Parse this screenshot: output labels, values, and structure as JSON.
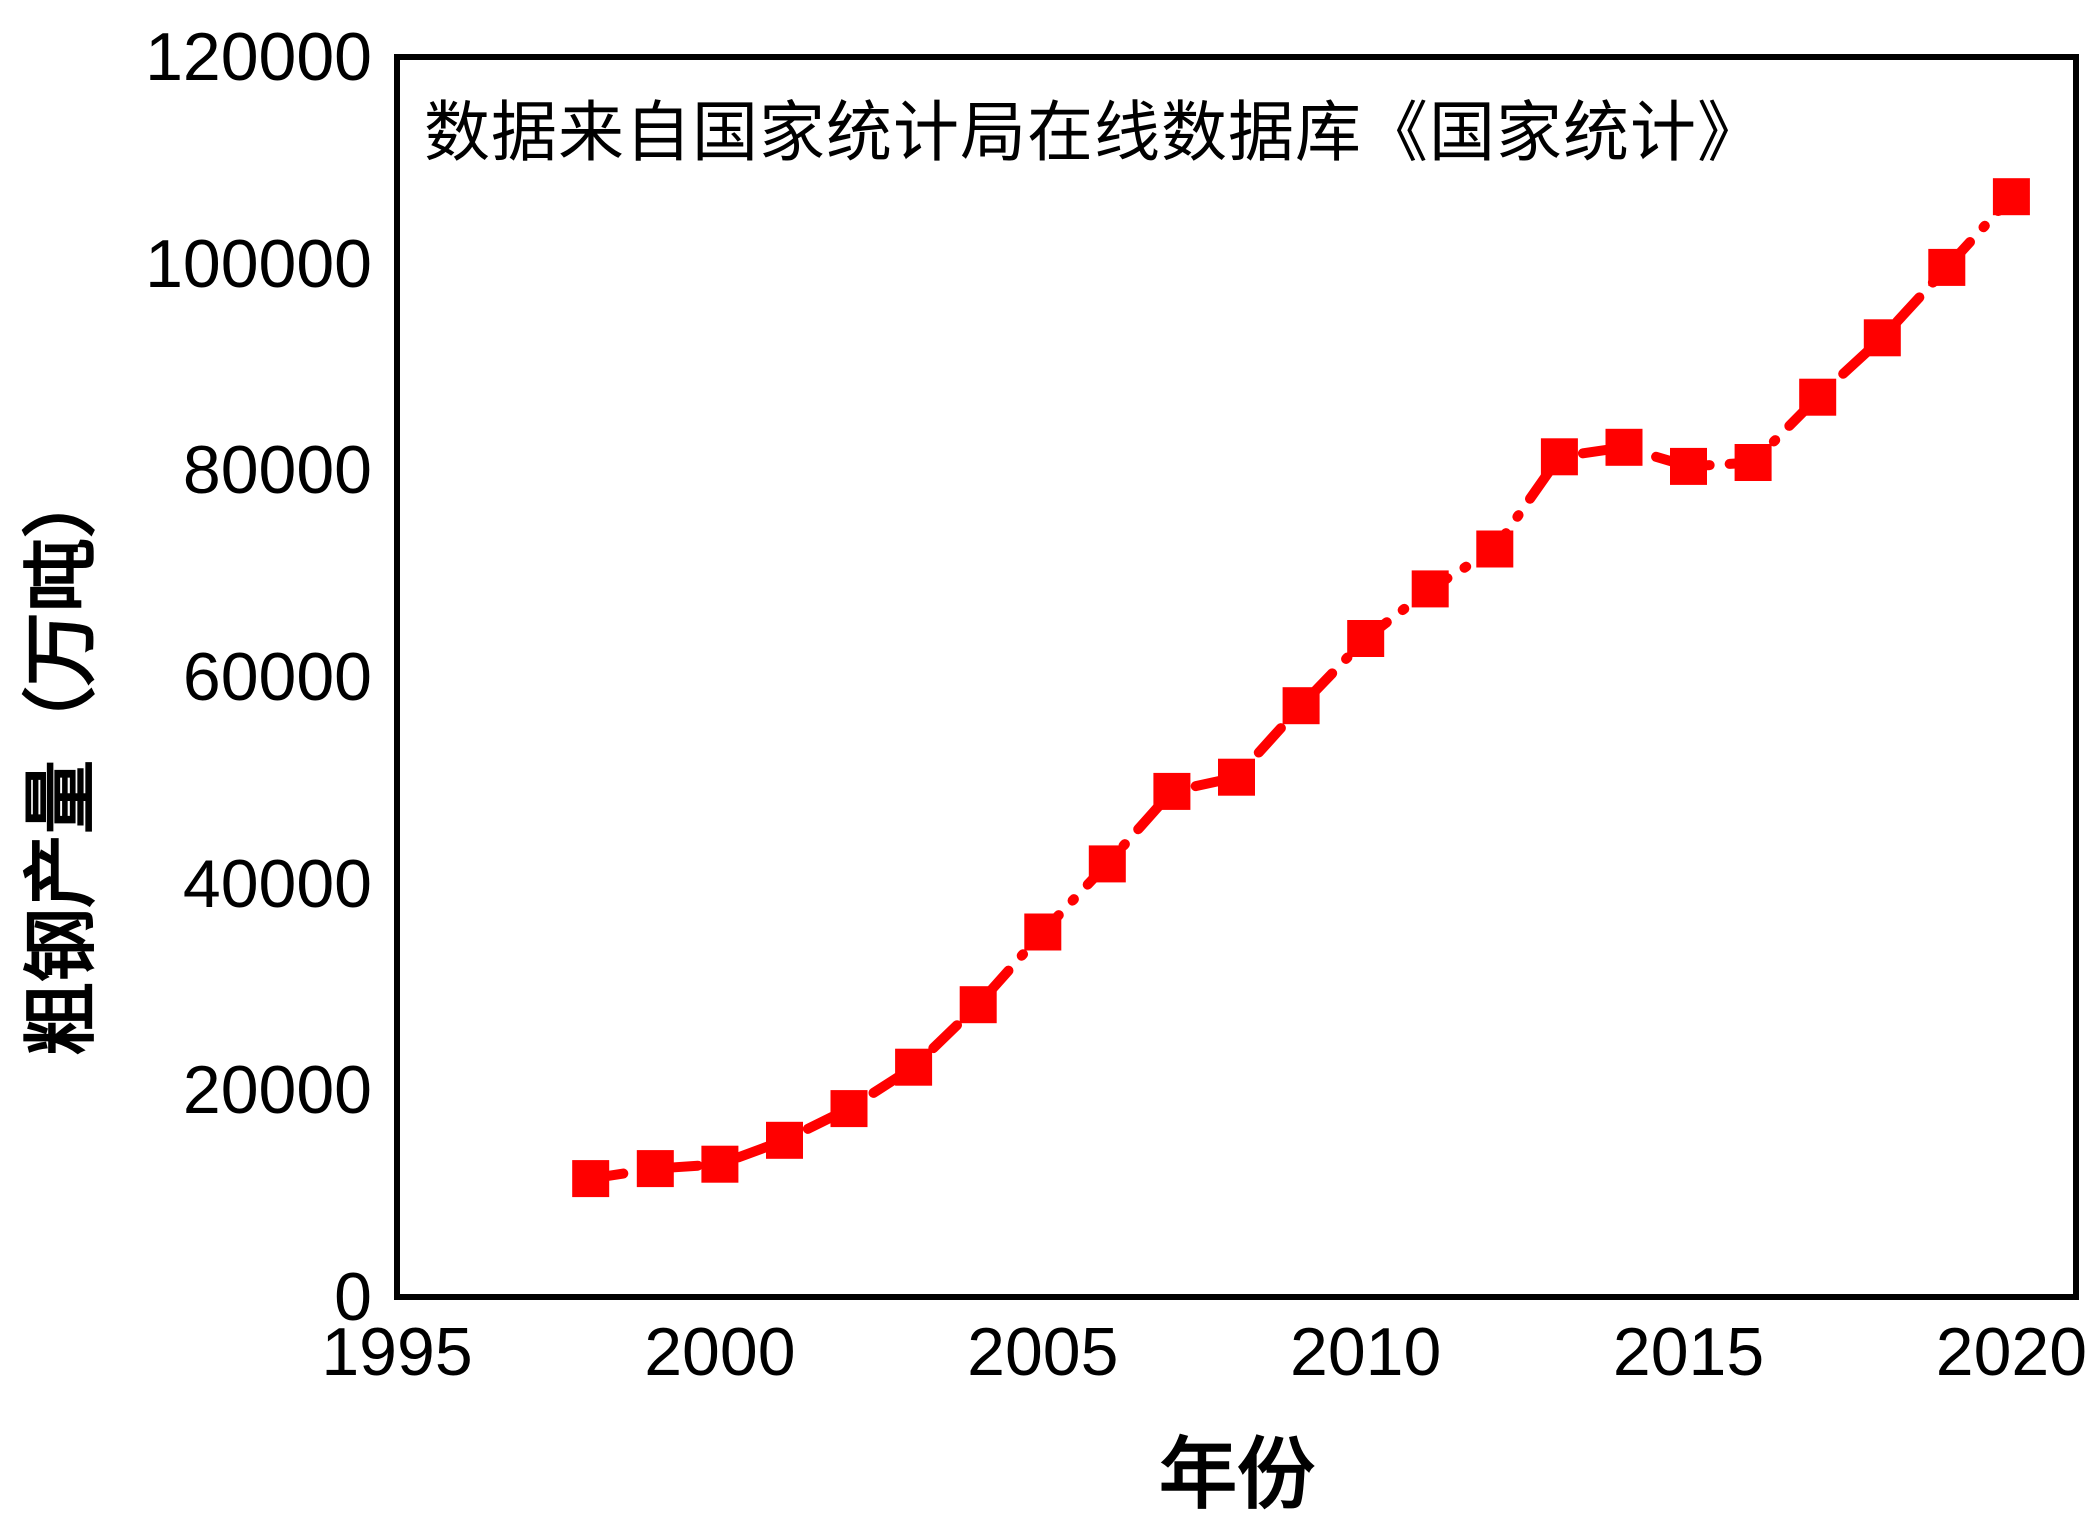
{
  "chart_data": {
    "type": "line",
    "annotation": "数据来自国家统计局在线数据库《国家统计》",
    "xlabel": "年份",
    "ylabel": "粗钢产量（万吨）",
    "x_range": [
      1995,
      2021
    ],
    "y_range": [
      0,
      120000
    ],
    "x_ticks": [
      "1995",
      "2000",
      "2005",
      "2010",
      "2015",
      "2020"
    ],
    "x_tick_values": [
      1995,
      2000,
      2005,
      2010,
      2015,
      2020
    ],
    "y_ticks": [
      "0",
      "20000",
      "40000",
      "60000",
      "80000",
      "100000",
      "120000"
    ],
    "y_tick_values": [
      0,
      20000,
      40000,
      60000,
      80000,
      100000,
      120000
    ],
    "grid": false,
    "legend": false,
    "series": [
      {
        "name": "粗钢产量",
        "color": "#ff0000",
        "marker": "square",
        "line_style": "dash-dot",
        "x": [
          1998,
          1999,
          2000,
          2001,
          2002,
          2003,
          2004,
          2005,
          2006,
          2007,
          2008,
          2009,
          2010,
          2011,
          2012,
          2013,
          2014,
          2015,
          2016,
          2017,
          2018,
          2019,
          2020
        ],
        "y": [
          11459,
          12426,
          12850,
          15163,
          18237,
          22234,
          28291,
          35324,
          41915,
          48929,
          50306,
          57218,
          63723,
          68528,
          72388,
          81313,
          82231,
          80382,
          80761,
          87074,
          92826,
          99634,
          106477
        ]
      }
    ],
    "colors": {
      "series": "#ff0000",
      "axis": "#000000",
      "text": "#000000",
      "background": "#ffffff"
    }
  }
}
